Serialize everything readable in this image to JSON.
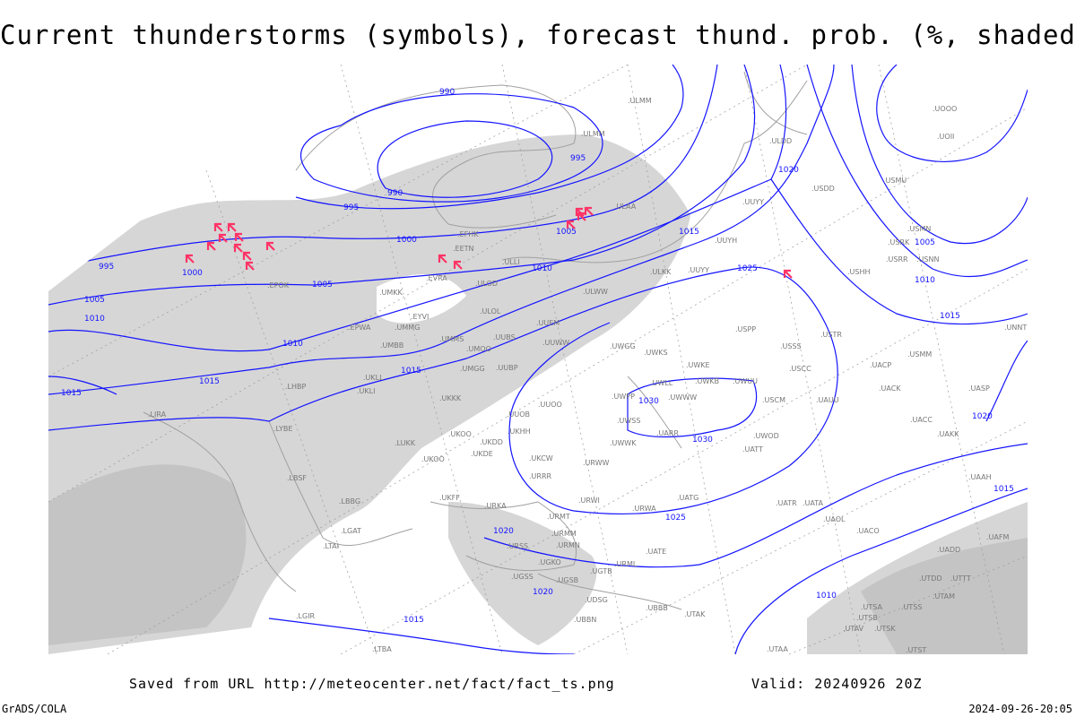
{
  "title": "Current thunderstorms (symbols), forecast thund. prob. (%, shaded)",
  "footer": {
    "saved_from": "Saved from URL http://meteocenter.net/fact/fact_ts.png",
    "valid": "Valid: 20240926 20Z",
    "software": "GrADS/COLA",
    "timestamp": "2024-09-26-20:05"
  },
  "colors": {
    "isobar": "#1414ff",
    "thunderstorm_symbol": "#ff3366",
    "shading": "#d6d6d6",
    "stations": "#777777"
  },
  "isobar_labels": [
    "990",
    "990",
    "995",
    "995",
    "1000",
    "1000",
    "1005",
    "1005",
    "1005",
    "1010",
    "1010",
    "1010",
    "1015",
    "1015",
    "1015",
    "1015",
    "1020",
    "1020",
    "1020",
    "1020",
    "1025",
    "1025",
    "1030",
    "1030",
    "1005",
    "1010",
    "1015",
    "1010",
    "1015",
    "1015",
    "995"
  ],
  "stations": [
    "ULMM",
    "UOOO",
    "UOII",
    "ULDD",
    "USDD",
    "USMU",
    "ULAA",
    "UUYY",
    "USRK",
    "USMN",
    "USRR",
    "USNN",
    "UUYH",
    "ULKK",
    "UUYY",
    "USHH",
    "EFHK",
    "EETN",
    "ULLI",
    "EVRA",
    "ULOD",
    "UMKK",
    "EPOK",
    "ULWW",
    "ULOL",
    "UUEM",
    "EYVI",
    "UMMG",
    "EPWA",
    "UMBB",
    "UMMS",
    "UMOO",
    "UUBS",
    "UUWW",
    "UWGG",
    "UWKS",
    "USPP",
    "USSS",
    "USTR",
    "UMGG",
    "UUBP",
    "UWKE",
    "USCC",
    "UACP",
    "UWKB",
    "UWUU",
    "UKLL",
    "UKLI",
    "LHBP",
    "UWLL",
    "UWWW",
    "UWPP",
    "USCM",
    "UAUU",
    "UACK",
    "UASP",
    "UKKK",
    "LIRA",
    "LYBE",
    "UUOO",
    "UUOB",
    "UWSS",
    "UKHH",
    "UKDD",
    "UKOO",
    "UWWK",
    "UKDE",
    "UARR",
    "UWOD",
    "UATT",
    "UACC",
    "UAKK",
    "UNNT",
    "UNBB",
    "USMM",
    "LUKK",
    "UKOO",
    "UKCW",
    "URWW",
    "URRR",
    "LBSF",
    "LBBG",
    "UKFF",
    "URKA",
    "URSS",
    "URMT",
    "URMM",
    "URMN",
    "URWI",
    "URWA",
    "UATG",
    "UATR",
    "UATE",
    "UAOL",
    "UATA",
    "UACO",
    "UAAH",
    "UAFM",
    "UADD",
    "UTDD",
    "UTTT",
    "UTSS",
    "UTAA",
    "UTAK",
    "UTAM",
    "UTSA",
    "UTSB",
    "UTAV",
    "UTSK",
    "UTST",
    "UBBB",
    "UBBN",
    "UGSB",
    "UGSS",
    "UGKO",
    "UGTB",
    "URML",
    "UDSG",
    "LTBA",
    "LGAT",
    "LTAI",
    "LGIR",
    "ULMM"
  ],
  "thunderstorm_count": 17
}
